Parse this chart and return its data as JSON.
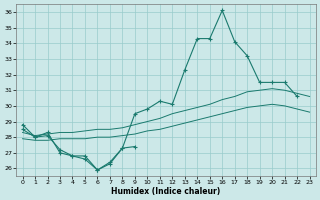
{
  "xlabel": "Humidex (Indice chaleur)",
  "background_color": "#cce8e8",
  "grid_color": "#99cccc",
  "line_color": "#1a7a6e",
  "xlim": [
    -0.5,
    23.5
  ],
  "ylim": [
    25.5,
    36.5
  ],
  "yticks": [
    26,
    27,
    28,
    29,
    30,
    31,
    32,
    33,
    34,
    35,
    36
  ],
  "xticks": [
    0,
    1,
    2,
    3,
    4,
    5,
    6,
    7,
    8,
    9,
    10,
    11,
    12,
    13,
    14,
    15,
    16,
    17,
    18,
    19,
    20,
    21,
    22,
    23
  ],
  "series": {
    "jagged_high": {
      "x": [
        0,
        1,
        2,
        3,
        4,
        5,
        6,
        7,
        8,
        9,
        10,
        11,
        12,
        13,
        14,
        15,
        16,
        17,
        18,
        19,
        20,
        21,
        22
      ],
      "y": [
        28.8,
        28.0,
        28.3,
        27.0,
        26.8,
        26.8,
        25.9,
        26.4,
        27.3,
        29.5,
        29.8,
        30.3,
        30.1,
        32.3,
        34.3,
        34.3,
        36.1,
        34.1,
        33.2,
        31.5,
        31.5,
        31.5,
        30.6
      ],
      "marker": true
    },
    "smooth_upper": {
      "x": [
        0,
        1,
        2,
        3,
        4,
        5,
        6,
        7,
        8,
        9,
        10,
        11,
        12,
        13,
        14,
        15,
        16,
        17,
        18,
        19,
        20,
        21,
        22,
        23
      ],
      "y": [
        28.3,
        28.1,
        28.2,
        28.3,
        28.3,
        28.4,
        28.5,
        28.5,
        28.6,
        28.8,
        29.0,
        29.2,
        29.5,
        29.7,
        29.9,
        30.1,
        30.4,
        30.6,
        30.9,
        31.0,
        31.1,
        31.0,
        30.8,
        30.6
      ],
      "marker": false
    },
    "smooth_lower": {
      "x": [
        0,
        1,
        2,
        3,
        4,
        5,
        6,
        7,
        8,
        9,
        10,
        11,
        12,
        13,
        14,
        15,
        16,
        17,
        18,
        19,
        20,
        21,
        22,
        23
      ],
      "y": [
        27.9,
        27.8,
        27.8,
        27.9,
        27.9,
        27.9,
        28.0,
        28.0,
        28.1,
        28.2,
        28.4,
        28.5,
        28.7,
        28.9,
        29.1,
        29.3,
        29.5,
        29.7,
        29.9,
        30.0,
        30.1,
        30.0,
        29.8,
        29.6
      ],
      "marker": false
    },
    "jagged_low": {
      "x": [
        0,
        1,
        2,
        3,
        4,
        5,
        6,
        7,
        8,
        9
      ],
      "y": [
        28.5,
        28.0,
        28.1,
        27.2,
        26.8,
        26.6,
        25.9,
        26.3,
        27.3,
        27.4
      ],
      "marker": true
    }
  }
}
